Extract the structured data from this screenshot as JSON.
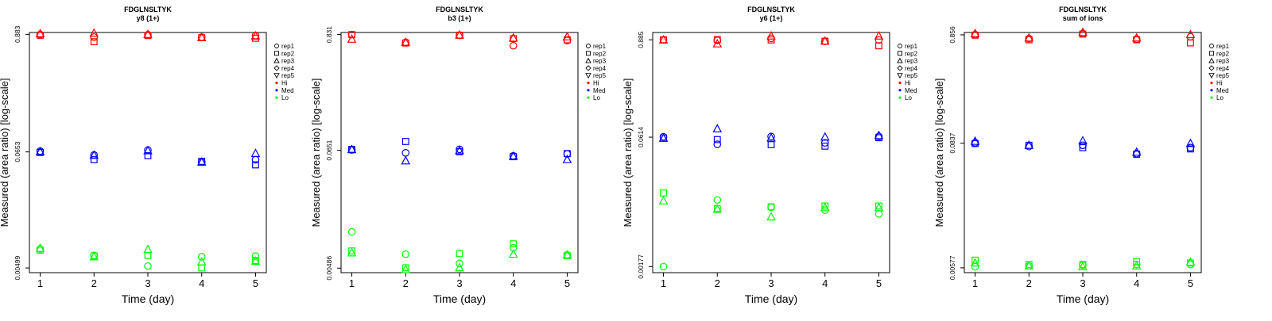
{
  "legend": {
    "reps": [
      "rep1",
      "rep2",
      "rep3",
      "rep4",
      "rep5"
    ],
    "conditions": [
      "Hi",
      "Med",
      "Lo"
    ],
    "colors": {
      "Hi": "#ff0000",
      "Med": "#0000ff",
      "Lo": "#00ff00"
    },
    "symbols": [
      "circle",
      "square",
      "triangle-up",
      "diamond",
      "triangle-down"
    ]
  },
  "chart_data": [
    {
      "type": "scatter",
      "title": "FDGLNSLTYK",
      "subtitle": "y8 (1+)",
      "xlabel": "Time (day)",
      "ylabel": "Measured (area ratio) [log-scale]",
      "x_ticks": [
        "1",
        "2",
        "3",
        "4",
        "5"
      ],
      "y_ticks": [
        "0.00499",
        "0.0653",
        "0.883"
      ],
      "y_scale": "log",
      "ylim": [
        0.0045,
        0.92
      ],
      "xlim": [
        0.8,
        5.2
      ],
      "series": [
        {
          "group": "Hi",
          "rep": "rep1",
          "x": [
            1,
            2,
            3,
            4,
            5
          ],
          "y": [
            0.88,
            0.83,
            0.875,
            0.83,
            0.86
          ]
        },
        {
          "group": "Hi",
          "rep": "rep2",
          "x": [
            1,
            2,
            3,
            4,
            5
          ],
          "y": [
            0.865,
            0.75,
            0.86,
            0.82,
            0.81
          ]
        },
        {
          "group": "Hi",
          "rep": "rep3",
          "x": [
            1,
            2,
            3,
            4,
            5
          ],
          "y": [
            0.895,
            0.905,
            0.88,
            0.82,
            0.85
          ]
        },
        {
          "group": "Med",
          "rep": "rep1",
          "x": [
            1,
            2,
            3,
            4,
            5
          ],
          "y": [
            0.0665,
            0.061,
            0.068,
            0.052,
            0.055
          ]
        },
        {
          "group": "Med",
          "rep": "rep2",
          "x": [
            1,
            2,
            3,
            4,
            5
          ],
          "y": [
            0.0645,
            0.055,
            0.06,
            0.053,
            0.049
          ]
        },
        {
          "group": "Med",
          "rep": "rep3",
          "x": [
            1,
            2,
            3,
            4,
            5
          ],
          "y": [
            0.0655,
            0.0605,
            0.067,
            0.052,
            0.063
          ]
        },
        {
          "group": "Lo",
          "rep": "rep1",
          "x": [
            1,
            2,
            3,
            4,
            5
          ],
          "y": [
            0.0076,
            0.0066,
            0.0052,
            0.0064,
            0.0065
          ]
        },
        {
          "group": "Lo",
          "rep": "rep2",
          "x": [
            1,
            2,
            3,
            4,
            5
          ],
          "y": [
            0.0074,
            0.0065,
            0.0066,
            0.005,
            0.0059
          ]
        },
        {
          "group": "Lo",
          "rep": "rep3",
          "x": [
            1,
            2,
            3,
            4,
            5
          ],
          "y": [
            0.0077,
            0.0064,
            0.0075,
            0.0057,
            0.0058
          ]
        }
      ]
    },
    {
      "type": "scatter",
      "title": "FDGLNSLTYK",
      "subtitle": "b3 (1+)",
      "xlabel": "Time (day)",
      "ylabel": "Measured (area ratio) [log-scale]",
      "x_ticks": [
        "1",
        "2",
        "3",
        "4",
        "5"
      ],
      "y_ticks": [
        "0.00486",
        "0.0651",
        "0.831"
      ],
      "y_scale": "log",
      "ylim": [
        0.0044,
        0.87
      ],
      "xlim": [
        0.8,
        5.2
      ],
      "series": [
        {
          "group": "Hi",
          "rep": "rep1",
          "x": [
            1,
            2,
            3,
            4,
            5
          ],
          "y": [
            0.83,
            0.7,
            0.82,
            0.65,
            0.73
          ]
        },
        {
          "group": "Hi",
          "rep": "rep2",
          "x": [
            1,
            2,
            3,
            4,
            5
          ],
          "y": [
            0.83,
            0.69,
            0.82,
            0.76,
            0.74
          ]
        },
        {
          "group": "Hi",
          "rep": "rep3",
          "x": [
            1,
            2,
            3,
            4,
            5
          ],
          "y": [
            0.75,
            0.7,
            0.82,
            0.77,
            0.79
          ]
        },
        {
          "group": "Med",
          "rep": "rep1",
          "x": [
            1,
            2,
            3,
            4,
            5
          ],
          "y": [
            0.0655,
            0.0615,
            0.0665,
            0.0575,
            0.06
          ]
        },
        {
          "group": "Med",
          "rep": "rep2",
          "x": [
            1,
            2,
            3,
            4,
            5
          ],
          "y": [
            0.0665,
            0.079,
            0.063,
            0.0565,
            0.0605
          ]
        },
        {
          "group": "Med",
          "rep": "rep3",
          "x": [
            1,
            2,
            3,
            4,
            5
          ],
          "y": [
            0.066,
            0.0515,
            0.0645,
            0.057,
            0.053
          ]
        },
        {
          "group": "Lo",
          "rep": "rep1",
          "x": [
            1,
            2,
            3,
            4,
            5
          ],
          "y": [
            0.0108,
            0.0066,
            0.0054,
            0.0076,
            0.0065
          ]
        },
        {
          "group": "Lo",
          "rep": "rep2",
          "x": [
            1,
            2,
            3,
            4,
            5
          ],
          "y": [
            0.0071,
            0.0049,
            0.0067,
            0.0083,
            0.0064
          ]
        },
        {
          "group": "Lo",
          "rep": "rep3",
          "x": [
            1,
            2,
            3,
            4,
            5
          ],
          "y": [
            0.0068,
            0.0047,
            0.0049,
            0.0066,
            0.0065
          ]
        }
      ]
    },
    {
      "type": "scatter",
      "title": "FDGLNSLTYK",
      "subtitle": "y6 (1+)",
      "xlabel": "Time (day)",
      "ylabel": "Measured (area ratio) [log-scale]",
      "x_ticks": [
        "1",
        "2",
        "3",
        "4",
        "5"
      ],
      "y_ticks": [
        "0.00177",
        "0.0614",
        "0.885"
      ],
      "y_scale": "log",
      "ylim": [
        0.0015,
        1.08
      ],
      "xlim": [
        0.8,
        5.2
      ],
      "series": [
        {
          "group": "Hi",
          "rep": "rep1",
          "x": [
            1,
            2,
            3,
            4,
            5
          ],
          "y": [
            0.885,
            0.87,
            0.92,
            0.85,
            0.88
          ]
        },
        {
          "group": "Hi",
          "rep": "rep2",
          "x": [
            1,
            2,
            3,
            4,
            5
          ],
          "y": [
            0.885,
            0.89,
            0.88,
            0.85,
            0.75
          ]
        },
        {
          "group": "Hi",
          "rep": "rep3",
          "x": [
            1,
            2,
            3,
            4,
            5
          ],
          "y": [
            0.88,
            0.79,
            0.98,
            0.85,
            0.98
          ]
        },
        {
          "group": "Med",
          "rep": "rep1",
          "x": [
            1,
            2,
            3,
            4,
            5
          ],
          "y": [
            0.062,
            0.0505,
            0.0625,
            0.0525,
            0.0625
          ]
        },
        {
          "group": "Med",
          "rep": "rep2",
          "x": [
            1,
            2,
            3,
            4,
            5
          ],
          "y": [
            0.06,
            0.0575,
            0.05,
            0.048,
            0.0605
          ]
        },
        {
          "group": "Med",
          "rep": "rep3",
          "x": [
            1,
            2,
            3,
            4,
            5
          ],
          "y": [
            0.0595,
            0.077,
            0.06,
            0.0615,
            0.064
          ]
        },
        {
          "group": "Lo",
          "rep": "rep1",
          "x": [
            1,
            2,
            3,
            4,
            5
          ],
          "y": [
            0.00177,
            0.011,
            0.009,
            0.0083,
            0.0075
          ]
        },
        {
          "group": "Lo",
          "rep": "rep2",
          "x": [
            1,
            2,
            3,
            4,
            5
          ],
          "y": [
            0.0133,
            0.0087,
            0.0091,
            0.0093,
            0.0093
          ]
        },
        {
          "group": "Lo",
          "rep": "rep3",
          "x": [
            1,
            2,
            3,
            4,
            5
          ],
          "y": [
            0.0107,
            0.0085,
            0.0069,
            0.0089,
            0.0089
          ]
        }
      ]
    },
    {
      "type": "scatter",
      "title": "FDGLNSLTYK",
      "subtitle": "sum of ions",
      "xlabel": "Time (day)",
      "ylabel": "Measured (area ratio) [log-scale]",
      "x_ticks": [
        "1",
        "2",
        "3",
        "4",
        "5"
      ],
      "y_ticks": [
        "0.00577",
        "0.0837",
        "0.856"
      ],
      "y_scale": "log",
      "ylim": [
        0.0052,
        0.9
      ],
      "xlim": [
        0.8,
        5.2
      ],
      "series": [
        {
          "group": "Hi",
          "rep": "rep1",
          "x": [
            1,
            2,
            3,
            4,
            5
          ],
          "y": [
            0.86,
            0.79,
            0.88,
            0.78,
            0.82
          ]
        },
        {
          "group": "Hi",
          "rep": "rep2",
          "x": [
            1,
            2,
            3,
            4,
            5
          ],
          "y": [
            0.85,
            0.77,
            0.87,
            0.77,
            0.72
          ]
        },
        {
          "group": "Hi",
          "rep": "rep3",
          "x": [
            1,
            2,
            3,
            4,
            5
          ],
          "y": [
            0.88,
            0.8,
            0.9,
            0.8,
            0.86
          ]
        },
        {
          "group": "Med",
          "rep": "rep1",
          "x": [
            1,
            2,
            3,
            4,
            5
          ],
          "y": [
            0.0845,
            0.078,
            0.08,
            0.067,
            0.076
          ]
        },
        {
          "group": "Med",
          "rep": "rep2",
          "x": [
            1,
            2,
            3,
            4,
            5
          ],
          "y": [
            0.083,
            0.08,
            0.076,
            0.066,
            0.074
          ]
        },
        {
          "group": "Med",
          "rep": "rep3",
          "x": [
            1,
            2,
            3,
            4,
            5
          ],
          "y": [
            0.087,
            0.08,
            0.088,
            0.069,
            0.083
          ]
        },
        {
          "group": "Lo",
          "rep": "rep1",
          "x": [
            1,
            2,
            3,
            4,
            5
          ],
          "y": [
            0.0059,
            0.006,
            0.0061,
            0.0062,
            0.0062
          ]
        },
        {
          "group": "Lo",
          "rep": "rep2",
          "x": [
            1,
            2,
            3,
            4,
            5
          ],
          "y": [
            0.0068,
            0.0062,
            0.0062,
            0.0066,
            0.0064
          ]
        },
        {
          "group": "Lo",
          "rep": "rep3",
          "x": [
            1,
            2,
            3,
            4,
            5
          ],
          "y": [
            0.0064,
            0.006,
            0.0059,
            0.006,
            0.0065
          ]
        }
      ]
    }
  ]
}
